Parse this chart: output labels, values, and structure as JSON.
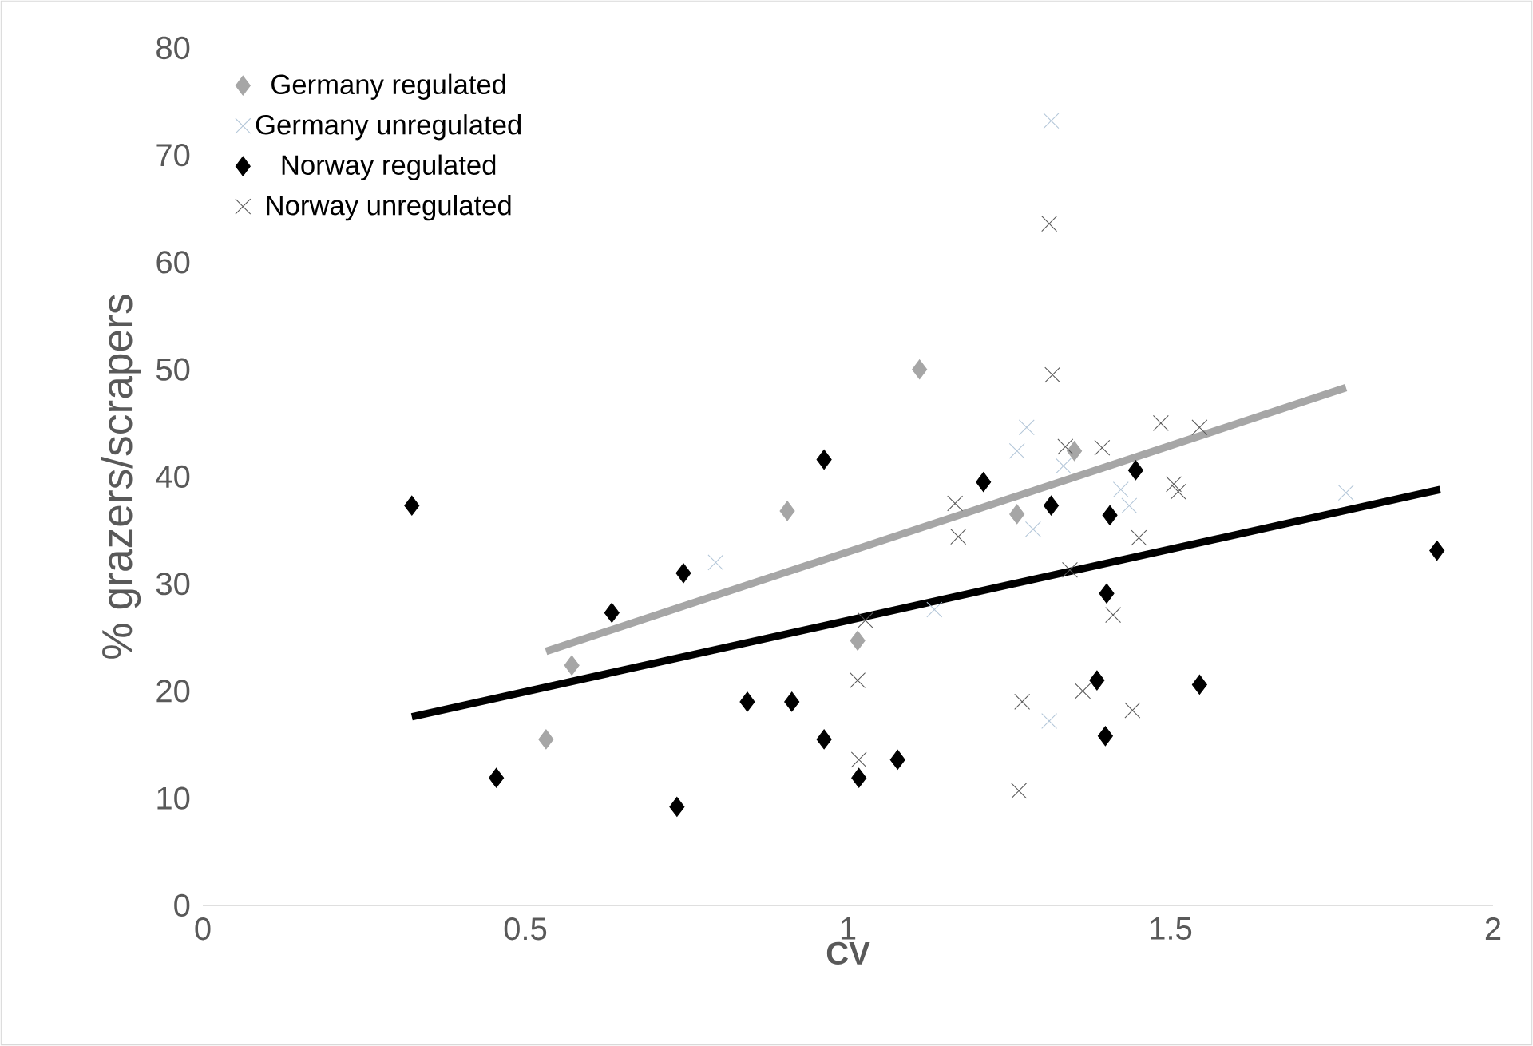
{
  "chart_data": {
    "type": "scatter",
    "xlabel": "CV",
    "ylabel": "% grazers/scrapers",
    "xlim": [
      0,
      2
    ],
    "ylim": [
      0,
      80
    ],
    "xticks": [
      0,
      0.5,
      1,
      1.5,
      2
    ],
    "yticks": [
      0,
      10,
      20,
      30,
      40,
      50,
      60,
      70,
      80
    ],
    "grid": false,
    "legend": "top left",
    "series": [
      {
        "name": "Germany regulated",
        "color": "#a6a6a6",
        "marker": "diamond",
        "x": [
          0.532,
          0.572,
          0.906,
          1.015,
          1.111,
          1.262,
          1.351
        ],
        "values": [
          15.5,
          22.4,
          36.8,
          24.7,
          50.0,
          36.5,
          42.4
        ]
      },
      {
        "name": "Germany unregulated",
        "color": "#b4c7d9",
        "marker": "cross",
        "x": [
          0.795,
          1.134,
          1.277,
          1.262,
          1.334,
          1.287,
          1.423,
          1.436,
          1.312,
          1.315,
          1.772
        ],
        "values": [
          32.0,
          27.6,
          44.6,
          42.4,
          41.0,
          35.1,
          38.8,
          37.3,
          17.2,
          73.2,
          38.5
        ]
      },
      {
        "name": "Norway regulated",
        "color": "#000000",
        "marker": "diamond",
        "x": [
          0.324,
          0.455,
          0.634,
          0.745,
          0.735,
          0.844,
          0.913,
          0.963,
          0.963,
          1.017,
          1.077,
          1.21,
          1.315,
          1.406,
          1.446,
          1.401,
          1.386,
          1.399,
          1.545,
          1.913
        ],
        "values": [
          37.3,
          11.9,
          27.3,
          31.0,
          9.2,
          19.0,
          19.0,
          15.5,
          41.6,
          11.9,
          13.6,
          39.5,
          37.3,
          36.4,
          40.6,
          29.1,
          21.0,
          15.8,
          20.6,
          33.1
        ]
      },
      {
        "name": "Norway unregulated",
        "color": "#595959",
        "marker": "cross",
        "x": [
          1.017,
          1.015,
          1.027,
          1.166,
          1.171,
          1.337,
          1.394,
          1.485,
          1.545,
          1.505,
          1.512,
          1.451,
          1.344,
          1.411,
          1.27,
          1.364,
          1.441,
          1.265,
          1.312,
          1.317
        ],
        "values": [
          13.6,
          21.0,
          26.6,
          37.5,
          34.4,
          42.8,
          42.7,
          45.0,
          44.6,
          39.3,
          38.6,
          34.3,
          31.3,
          27.1,
          19.0,
          20.0,
          18.2,
          10.7,
          63.6,
          49.5
        ]
      },
      {
        "type": "line",
        "color": "#a6a6a6",
        "marker": "none",
        "x": [
          0.532,
          1.772
        ],
        "values": [
          23.7,
          48.3
        ]
      },
      {
        "type": "line",
        "color": "#000000",
        "marker": "none",
        "x": [
          0.324,
          1.918
        ],
        "values": [
          17.6,
          38.8
        ]
      }
    ]
  }
}
